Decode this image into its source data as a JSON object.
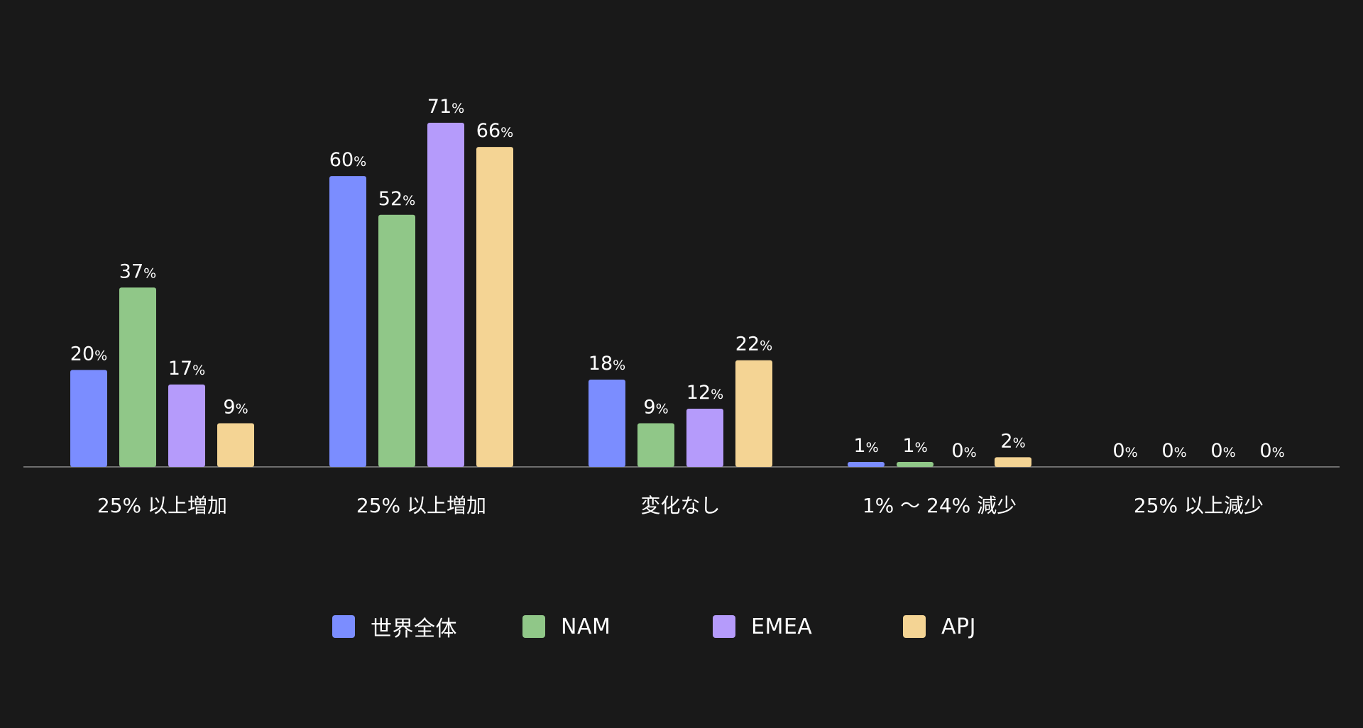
{
  "chart_data": {
    "type": "bar",
    "categories": [
      "25% 以上増加",
      "25% 以上増加",
      "変化なし",
      "1% 〜 24% 減少",
      "25% 以上減少"
    ],
    "series": [
      {
        "name": "世界全体",
        "color": "#7b8dff",
        "values": [
          20,
          60,
          18,
          1,
          0
        ]
      },
      {
        "name": "NAM",
        "color": "#90c788",
        "values": [
          37,
          52,
          9,
          1,
          0
        ]
      },
      {
        "name": "EMEA",
        "color": "#b59bfb",
        "values": [
          17,
          71,
          12,
          0,
          0
        ]
      },
      {
        "name": "APJ",
        "color": "#f4d494",
        "values": [
          9,
          66,
          22,
          2,
          0
        ]
      }
    ],
    "value_suffix": "%",
    "ylim": [
      0,
      71
    ],
    "legend_position": "bottom-center",
    "grid": false
  }
}
